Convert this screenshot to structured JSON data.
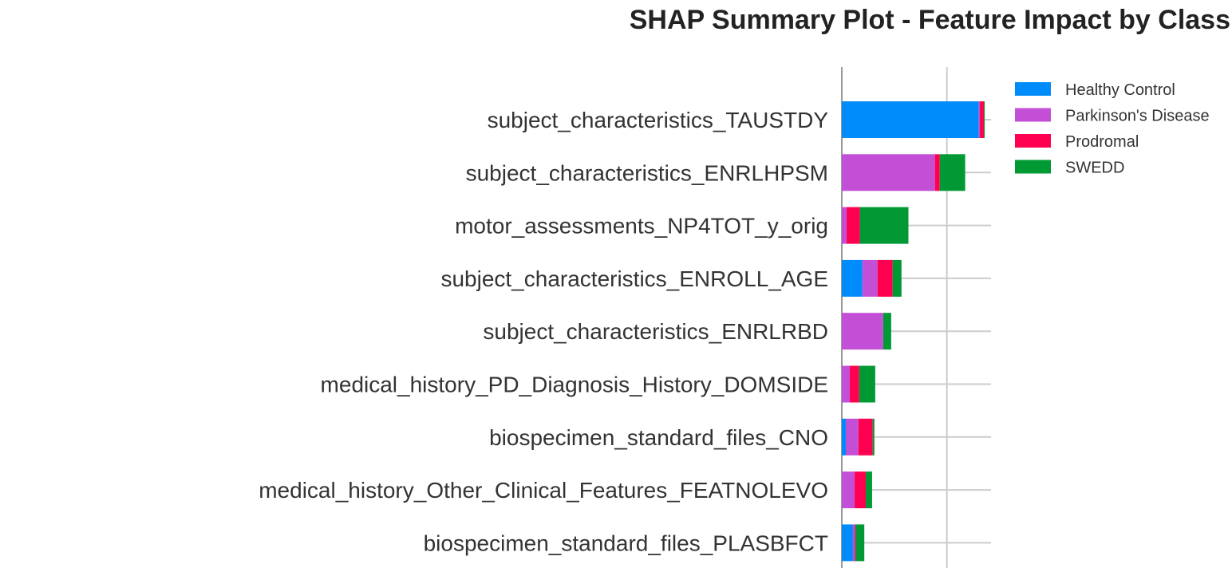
{
  "chart_data": {
    "type": "bar",
    "orientation": "horizontal",
    "stacked": true,
    "title": "SHAP Summary Plot - Feature Impact by Class",
    "xlabel": "",
    "ylabel": "",
    "xlim": [
      0,
      0.071
    ],
    "x_gridlines": [
      0,
      0.05
    ],
    "legend_position": "top-right",
    "categories": [
      "subject_characteristics_TAUSTDY",
      "subject_characteristics_ENRLHPSM",
      "motor_assessments_NP4TOT_y_orig",
      "subject_characteristics_ENROLL_AGE",
      "subject_characteristics_ENRLRBD",
      "medical_history_PD_Diagnosis_History_DOMSIDE",
      "biospecimen_standard_files_CNO",
      "medical_history_Other_Clinical_Features_FEATNOLEVO",
      "biospecimen_standard_files_PLASBFCT"
    ],
    "series": [
      {
        "name": "Healthy Control",
        "color": "#008bfb",
        "values": [
          0.0652,
          0.0,
          0.0,
          0.0098,
          0.0,
          0.0,
          0.0019,
          0.0,
          0.0053
        ]
      },
      {
        "name": "Parkinson's Disease",
        "color": "#c44fd7",
        "values": [
          0.0005,
          0.0443,
          0.0023,
          0.0072,
          0.0197,
          0.0038,
          0.006,
          0.0061,
          0.0008
        ]
      },
      {
        "name": "Prodromal",
        "color": "#ff0051",
        "values": [
          0.0019,
          0.0023,
          0.0063,
          0.0072,
          0.0,
          0.0045,
          0.0068,
          0.0053,
          0.0004
        ]
      },
      {
        "name": "SWEDD",
        "color": "#009933",
        "values": [
          0.0004,
          0.0121,
          0.0231,
          0.0042,
          0.0038,
          0.0076,
          0.0008,
          0.003,
          0.0042
        ]
      }
    ]
  }
}
